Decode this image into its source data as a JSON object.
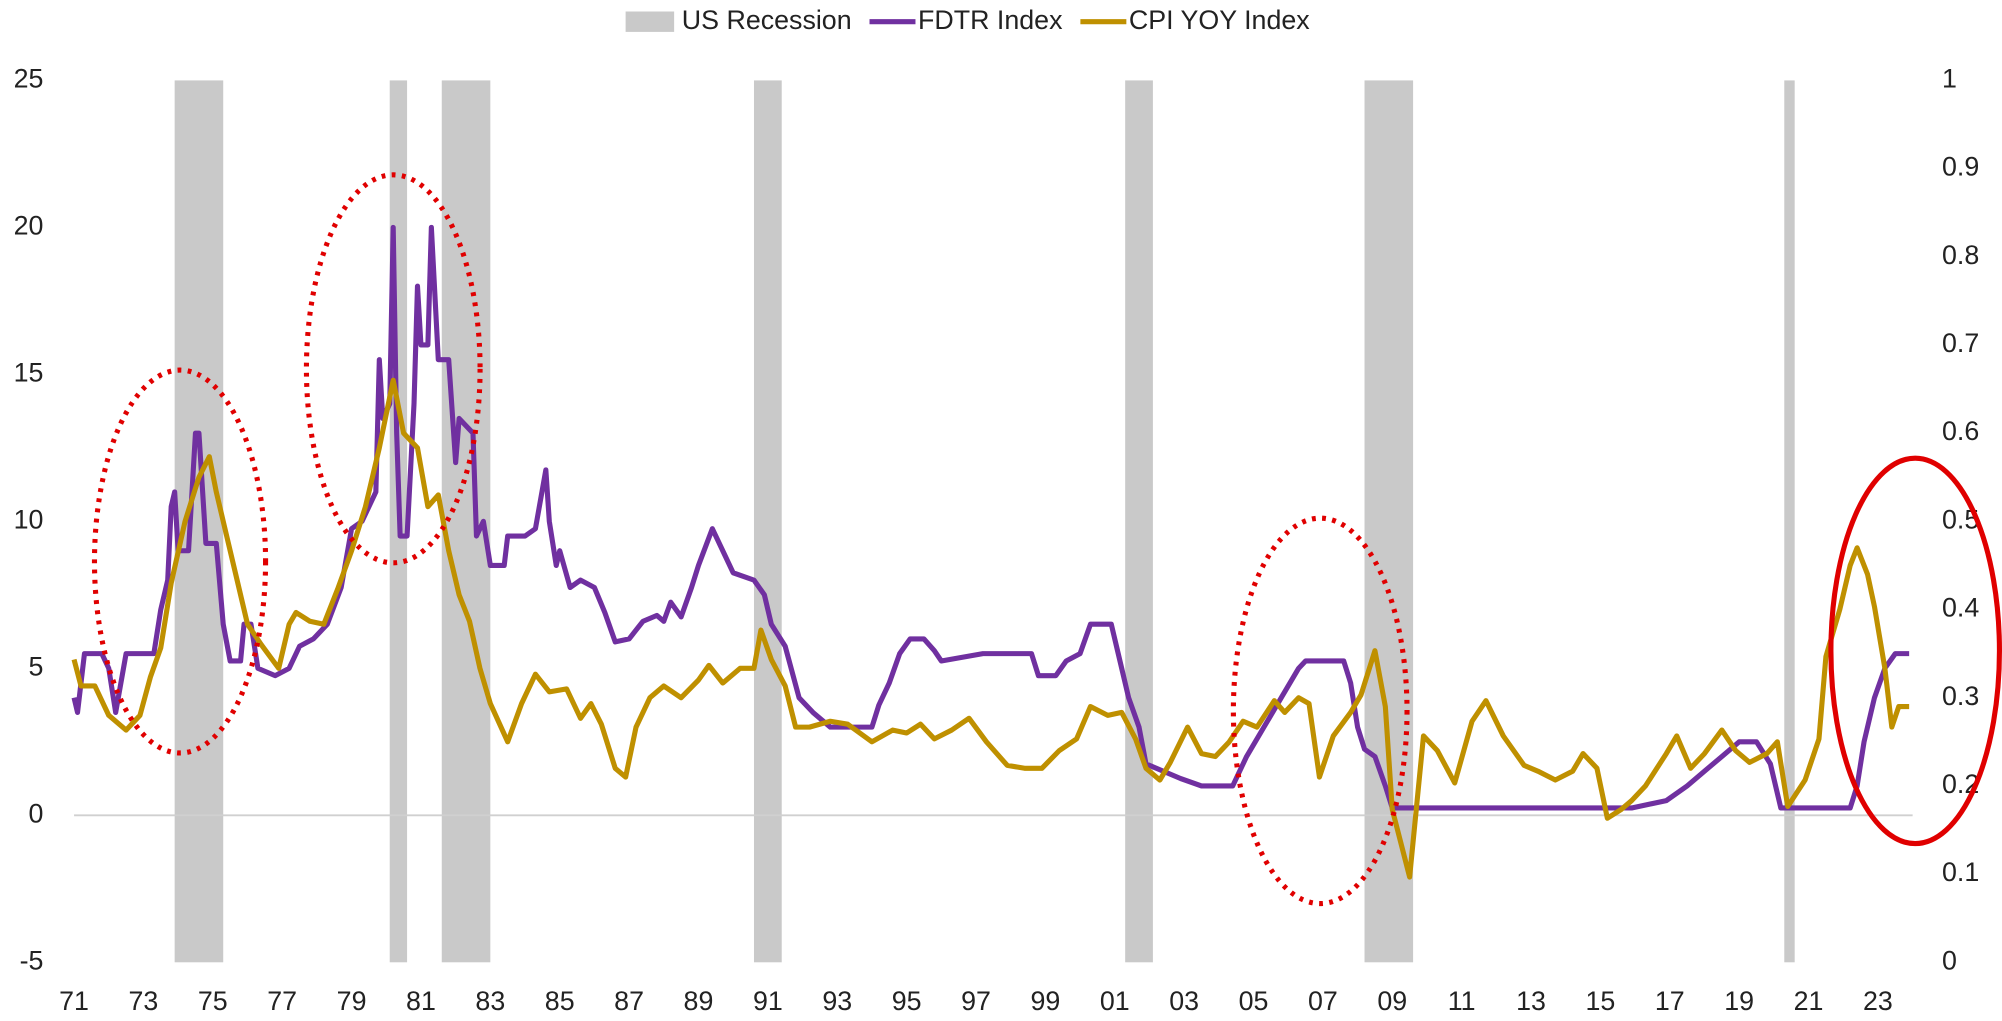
{
  "chart_data": {
    "type": "line",
    "xticks": [
      {
        "value": 1971,
        "label": "71"
      },
      {
        "value": 1973,
        "label": "73"
      },
      {
        "value": 1975,
        "label": "75"
      },
      {
        "value": 1977,
        "label": "77"
      },
      {
        "value": 1979,
        "label": "79"
      },
      {
        "value": 1981,
        "label": "81"
      },
      {
        "value": 1983,
        "label": "83"
      },
      {
        "value": 1985,
        "label": "85"
      },
      {
        "value": 1987,
        "label": "87"
      },
      {
        "value": 1989,
        "label": "89"
      },
      {
        "value": 1991,
        "label": "91"
      },
      {
        "value": 1993,
        "label": "93"
      },
      {
        "value": 1995,
        "label": "95"
      },
      {
        "value": 1997,
        "label": "97"
      },
      {
        "value": 1999,
        "label": "99"
      },
      {
        "value": 2001,
        "label": "01"
      },
      {
        "value": 2003,
        "label": "03"
      },
      {
        "value": 2005,
        "label": "05"
      },
      {
        "value": 2007,
        "label": "07"
      },
      {
        "value": 2009,
        "label": "09"
      },
      {
        "value": 2011,
        "label": "11"
      },
      {
        "value": 2013,
        "label": "13"
      },
      {
        "value": 2015,
        "label": "15"
      },
      {
        "value": 2017,
        "label": "17"
      },
      {
        "value": 2019,
        "label": "19"
      },
      {
        "value": 2021,
        "label": "21"
      },
      {
        "value": 2023,
        "label": "23"
      }
    ],
    "xlim": [
      1971,
      2024
    ],
    "ylim": [
      -5,
      25
    ],
    "yticks": [
      -5,
      0,
      5,
      10,
      15,
      20,
      25
    ],
    "y2lim": [
      0,
      1
    ],
    "y2ticks": [
      0,
      0.1,
      0.2,
      0.3,
      0.4,
      0.5,
      0.6,
      0.7,
      0.8,
      0.9,
      1
    ],
    "recession": {
      "name": "US Recession",
      "color": "#c9c9c9",
      "axis": "y2",
      "periods": [
        {
          "start": 1973.9,
          "end": 1975.3,
          "value": 1
        },
        {
          "start": 1980.1,
          "end": 1980.6,
          "value": 1
        },
        {
          "start": 1981.6,
          "end": 1983.0,
          "value": 1
        },
        {
          "start": 1990.6,
          "end": 1991.4,
          "value": 1
        },
        {
          "start": 2001.3,
          "end": 2002.1,
          "value": 1
        },
        {
          "start": 2008.2,
          "end": 2009.6,
          "value": 1
        },
        {
          "start": 2020.3,
          "end": 2020.6,
          "value": 1
        }
      ]
    },
    "series": [
      {
        "name": "FDTR Index",
        "color": "#7030a0",
        "x": [
          1971.0,
          1971.1,
          1971.3,
          1971.8,
          1972.0,
          1972.2,
          1972.5,
          1973.3,
          1973.5,
          1973.7,
          1973.8,
          1973.9,
          1974.0,
          1974.3,
          1974.5,
          1974.6,
          1974.8,
          1975.1,
          1975.3,
          1975.5,
          1975.8,
          1975.9,
          1976.1,
          1976.3,
          1976.8,
          1977.2,
          1977.5,
          1977.9,
          1978.3,
          1978.7,
          1979.0,
          1979.3,
          1979.7,
          1979.8,
          1979.9,
          1980.1,
          1980.2,
          1980.3,
          1980.4,
          1980.6,
          1980.8,
          1980.9,
          1981.0,
          1981.2,
          1981.3,
          1981.5,
          1981.8,
          1982.0,
          1982.1,
          1982.5,
          1982.6,
          1982.8,
          1983.0,
          1983.4,
          1983.5,
          1984.0,
          1984.3,
          1984.6,
          1984.7,
          1984.9,
          1985.0,
          1985.3,
          1985.6,
          1986.0,
          1986.3,
          1986.6,
          1987.0,
          1987.4,
          1987.8,
          1988.0,
          1988.2,
          1988.5,
          1988.8,
          1989.0,
          1989.4,
          1989.7,
          1990.0,
          1990.6,
          1990.9,
          1991.1,
          1991.5,
          1991.9,
          1992.3,
          1992.8,
          1993.5,
          1994.0,
          1994.2,
          1994.5,
          1994.8,
          1995.1,
          1995.5,
          1995.8,
          1996.0,
          1997.2,
          1998.6,
          1998.8,
          1999.3,
          1999.6,
          2000.0,
          2000.3,
          2000.9,
          2001.1,
          2001.4,
          2001.7,
          2001.9,
          2002.9,
          2003.5,
          2004.4,
          2004.8,
          2005.3,
          2005.8,
          2006.3,
          2006.5,
          2007.6,
          2007.8,
          2008.0,
          2008.2,
          2008.5,
          2008.8,
          2009.0,
          2015.9,
          2016.9,
          2017.5,
          2018.0,
          2018.5,
          2019.0,
          2019.5,
          2019.9,
          2020.2,
          2022.2,
          2022.4,
          2022.6,
          2022.9,
          2023.2,
          2023.5,
          2023.9
        ],
        "values": [
          4.0,
          3.5,
          5.5,
          5.5,
          5.0,
          3.5,
          5.5,
          5.5,
          7.0,
          8.0,
          10.5,
          11.0,
          9.0,
          9.0,
          13.0,
          13.0,
          9.25,
          9.25,
          6.5,
          5.25,
          5.25,
          6.5,
          6.5,
          5.0,
          4.75,
          5.0,
          5.75,
          6.0,
          6.5,
          7.75,
          9.75,
          10.0,
          11.0,
          15.5,
          13.5,
          14.0,
          20.0,
          13.0,
          9.5,
          9.5,
          14.0,
          18.0,
          16.0,
          16.0,
          20.0,
          15.5,
          15.5,
          12.0,
          13.5,
          13.0,
          9.5,
          10.0,
          8.5,
          8.5,
          9.5,
          9.5,
          9.75,
          11.75,
          10.0,
          8.5,
          9.0,
          7.75,
          8.0,
          7.75,
          6.9,
          5.9,
          6.0,
          6.6,
          6.8,
          6.6,
          7.25,
          6.75,
          7.75,
          8.5,
          9.75,
          9.0,
          8.25,
          8.0,
          7.5,
          6.5,
          5.75,
          4.0,
          3.5,
          3.0,
          3.0,
          3.0,
          3.75,
          4.5,
          5.5,
          6.0,
          6.0,
          5.6,
          5.25,
          5.5,
          5.5,
          4.75,
          4.75,
          5.25,
          5.5,
          6.5,
          6.5,
          5.5,
          4.0,
          3.0,
          1.75,
          1.25,
          1.0,
          1.0,
          2.0,
          3.0,
          4.0,
          5.0,
          5.25,
          5.25,
          4.5,
          3.0,
          2.25,
          2.0,
          1.0,
          0.25,
          0.25,
          0.5,
          1.0,
          1.5,
          2.0,
          2.5,
          2.5,
          1.75,
          0.25,
          0.25,
          1.0,
          2.5,
          4.0,
          5.0,
          5.5,
          5.5
        ]
      },
      {
        "name": "CPI YOY Index",
        "color": "#bf9000",
        "x": [
          1971.0,
          1971.2,
          1971.6,
          1972.0,
          1972.5,
          1972.9,
          1973.2,
          1973.5,
          1973.8,
          1974.2,
          1974.6,
          1974.9,
          1975.1,
          1975.4,
          1975.7,
          1976.0,
          1976.4,
          1976.9,
          1977.2,
          1977.4,
          1977.8,
          1978.2,
          1978.6,
          1979.0,
          1979.4,
          1979.8,
          1980.2,
          1980.5,
          1980.9,
          1981.2,
          1981.5,
          1981.8,
          1982.1,
          1982.4,
          1982.7,
          1983.0,
          1983.5,
          1983.9,
          1984.3,
          1984.7,
          1985.2,
          1985.6,
          1985.9,
          1986.2,
          1986.6,
          1986.9,
          1987.2,
          1987.6,
          1988.0,
          1988.5,
          1989.0,
          1989.3,
          1989.7,
          1990.2,
          1990.6,
          1990.8,
          1991.1,
          1991.5,
          1991.8,
          1992.2,
          1992.8,
          1993.3,
          1994.0,
          1994.6,
          1995.0,
          1995.4,
          1995.8,
          1996.3,
          1996.8,
          1997.3,
          1997.9,
          1998.4,
          1998.9,
          1999.4,
          1999.9,
          2000.3,
          2000.8,
          2001.2,
          2001.6,
          2001.9,
          2002.3,
          2002.6,
          2003.1,
          2003.5,
          2003.9,
          2004.3,
          2004.7,
          2005.1,
          2005.6,
          2005.9,
          2006.3,
          2006.6,
          2006.9,
          2007.3,
          2007.8,
          2008.1,
          2008.5,
          2008.8,
          2009.0,
          2009.5,
          2009.9,
          2010.3,
          2010.8,
          2011.3,
          2011.7,
          2012.2,
          2012.8,
          2013.2,
          2013.7,
          2014.2,
          2014.5,
          2014.9,
          2015.2,
          2015.6,
          2015.9,
          2016.3,
          2016.9,
          2017.2,
          2017.6,
          2018.0,
          2018.5,
          2018.9,
          2019.3,
          2019.8,
          2020.1,
          2020.4,
          2020.9,
          2021.3,
          2021.5,
          2021.9,
          2022.2,
          2022.4,
          2022.7,
          2022.9,
          2023.2,
          2023.4,
          2023.6,
          2023.9
        ],
        "values": [
          5.3,
          4.4,
          4.4,
          3.4,
          2.9,
          3.4,
          4.7,
          5.7,
          7.9,
          10.0,
          11.5,
          12.2,
          11.0,
          9.5,
          8.0,
          6.5,
          5.8,
          5.0,
          6.5,
          6.9,
          6.6,
          6.5,
          7.7,
          9.0,
          10.5,
          12.5,
          14.8,
          13.0,
          12.5,
          10.5,
          10.9,
          9.0,
          7.5,
          6.6,
          5.0,
          3.8,
          2.5,
          3.8,
          4.8,
          4.2,
          4.3,
          3.3,
          3.8,
          3.1,
          1.6,
          1.3,
          3.0,
          4.0,
          4.4,
          4.0,
          4.6,
          5.1,
          4.5,
          5.0,
          5.0,
          6.3,
          5.3,
          4.4,
          3.0,
          3.0,
          3.2,
          3.1,
          2.5,
          2.9,
          2.8,
          3.1,
          2.6,
          2.9,
          3.3,
          2.5,
          1.7,
          1.6,
          1.6,
          2.2,
          2.6,
          3.7,
          3.4,
          3.5,
          2.6,
          1.6,
          1.2,
          1.8,
          3.0,
          2.1,
          2.0,
          2.5,
          3.2,
          3.0,
          3.9,
          3.5,
          4.0,
          3.8,
          1.3,
          2.7,
          3.5,
          4.1,
          5.6,
          3.7,
          0.2,
          -2.1,
          2.7,
          2.2,
          1.1,
          3.2,
          3.9,
          2.7,
          1.7,
          1.5,
          1.2,
          1.5,
          2.1,
          1.6,
          -0.1,
          0.2,
          0.5,
          1.0,
          2.1,
          2.7,
          1.6,
          2.1,
          2.9,
          2.2,
          1.8,
          2.1,
          2.5,
          0.3,
          1.2,
          2.6,
          5.4,
          7.0,
          8.5,
          9.1,
          8.2,
          7.1,
          5.0,
          3.0,
          3.7,
          3.7
        ]
      }
    ]
  }
}
